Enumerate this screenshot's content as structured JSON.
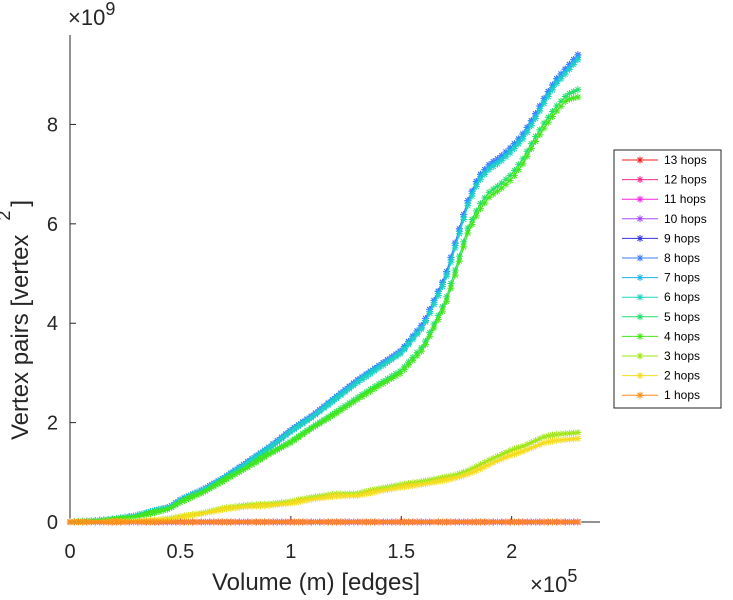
{
  "chart_data": {
    "type": "line",
    "title": "",
    "xlabel": "Volume (m) [edges]",
    "ylabel_main": "Vertex pairs [vertex",
    "ylabel_sup": "2",
    "ylabel_close": "]",
    "x_exponent_base": "×10",
    "x_exponent_power": "5",
    "y_exponent_base": "×10",
    "y_exponent_power": "9",
    "xlim": [
      0,
      2.4
    ],
    "ylim": [
      0,
      9.8
    ],
    "x_units_scale": "1e5",
    "y_units_scale": "1e9",
    "xticks": [
      0,
      0.5,
      1,
      1.5,
      2
    ],
    "xtick_labels": [
      "0",
      "0.5",
      "1",
      "1.5",
      "2"
    ],
    "yticks": [
      0,
      2,
      4,
      6,
      8
    ],
    "ytick_labels": [
      "0",
      "2",
      "4",
      "6",
      "8"
    ],
    "grid": false,
    "legend_position": "right",
    "x": [
      0.0,
      0.1,
      0.2,
      0.3,
      0.4,
      0.45,
      0.5,
      0.6,
      0.7,
      0.8,
      0.9,
      1.0,
      1.1,
      1.2,
      1.3,
      1.4,
      1.5,
      1.6,
      1.7,
      1.75,
      1.8,
      1.85,
      1.9,
      1.95,
      2.0,
      2.05,
      2.1,
      2.15,
      2.2,
      2.25,
      2.3
    ],
    "series": [
      {
        "name": "13 hops",
        "color": "#ff1a1a",
        "values": [
          0,
          0,
          0,
          0,
          0,
          0,
          0,
          0,
          0,
          0,
          0,
          0,
          0,
          0,
          0,
          0,
          0,
          0,
          0,
          0,
          0,
          0,
          0,
          0,
          0,
          0,
          0,
          0,
          0,
          0,
          0
        ]
      },
      {
        "name": "12 hops",
        "color": "#ff2a8c",
        "values": [
          0,
          0,
          0,
          0,
          0,
          0,
          0,
          0,
          0,
          0,
          0,
          0,
          0,
          0,
          0,
          0,
          0,
          0,
          0,
          0,
          0,
          0,
          0,
          0,
          0,
          0,
          0,
          0,
          0,
          0,
          0
        ]
      },
      {
        "name": "11 hops",
        "color": "#ff22e0",
        "values": [
          0,
          0,
          0,
          0,
          0,
          0,
          0,
          0,
          0,
          0,
          0,
          0,
          0,
          0,
          0,
          0,
          0,
          0,
          0,
          0,
          0,
          0,
          0,
          0,
          0,
          0,
          0,
          0,
          0,
          0,
          0
        ]
      },
      {
        "name": "10 hops",
        "color": "#a64dff",
        "values": [
          0,
          0,
          0,
          0,
          0,
          0,
          0,
          0,
          0,
          0,
          0,
          0,
          0,
          0,
          0,
          0,
          0,
          0,
          0,
          0,
          0,
          0,
          0,
          0,
          0,
          0,
          0,
          0,
          0,
          0,
          0
        ]
      },
      {
        "name": "9 hops",
        "color": "#3333e6",
        "values": [
          0.0,
          0.02,
          0.06,
          0.13,
          0.25,
          0.3,
          0.45,
          0.65,
          0.9,
          1.2,
          1.5,
          1.85,
          2.15,
          2.5,
          2.85,
          3.15,
          3.45,
          4.0,
          4.95,
          5.7,
          6.45,
          6.95,
          7.2,
          7.35,
          7.55,
          7.8,
          8.15,
          8.55,
          8.9,
          9.15,
          9.4
        ]
      },
      {
        "name": "8 hops",
        "color": "#3d7bff",
        "values": [
          0.0,
          0.02,
          0.06,
          0.13,
          0.25,
          0.3,
          0.45,
          0.65,
          0.9,
          1.2,
          1.5,
          1.85,
          2.15,
          2.5,
          2.85,
          3.15,
          3.45,
          4.0,
          4.95,
          5.7,
          6.45,
          6.95,
          7.2,
          7.35,
          7.55,
          7.8,
          8.15,
          8.55,
          8.9,
          9.15,
          9.4
        ]
      },
      {
        "name": "7 hops",
        "color": "#1ab3f0",
        "values": [
          0.0,
          0.02,
          0.06,
          0.13,
          0.25,
          0.3,
          0.44,
          0.64,
          0.89,
          1.19,
          1.49,
          1.83,
          2.13,
          2.48,
          2.83,
          3.13,
          3.42,
          3.96,
          4.9,
          5.65,
          6.4,
          6.9,
          7.15,
          7.3,
          7.5,
          7.75,
          8.1,
          8.5,
          8.85,
          9.1,
          9.35
        ]
      },
      {
        "name": "6 hops",
        "color": "#1fd3c0",
        "values": [
          0.0,
          0.02,
          0.06,
          0.13,
          0.25,
          0.3,
          0.44,
          0.64,
          0.88,
          1.18,
          1.48,
          1.82,
          2.12,
          2.46,
          2.8,
          3.1,
          3.4,
          3.93,
          4.86,
          5.6,
          6.35,
          6.85,
          7.1,
          7.25,
          7.45,
          7.7,
          8.05,
          8.45,
          8.8,
          9.05,
          9.3
        ]
      },
      {
        "name": "5 hops",
        "color": "#22e06a",
        "values": [
          0.0,
          0.02,
          0.05,
          0.11,
          0.21,
          0.27,
          0.4,
          0.6,
          0.85,
          1.1,
          1.38,
          1.62,
          1.92,
          2.2,
          2.5,
          2.78,
          3.05,
          3.55,
          4.45,
          5.15,
          5.9,
          6.35,
          6.65,
          6.8,
          7.0,
          7.3,
          7.7,
          8.05,
          8.35,
          8.6,
          8.7
        ]
      },
      {
        "name": "4 hops",
        "color": "#44e61a",
        "values": [
          0.0,
          0.02,
          0.05,
          0.11,
          0.21,
          0.27,
          0.4,
          0.59,
          0.84,
          1.09,
          1.36,
          1.6,
          1.9,
          2.17,
          2.46,
          2.74,
          3.0,
          3.48,
          4.36,
          5.05,
          5.8,
          6.25,
          6.55,
          6.7,
          6.9,
          7.2,
          7.6,
          7.95,
          8.25,
          8.5,
          8.55
        ]
      },
      {
        "name": "3 hops",
        "color": "#a0e619",
        "values": [
          0.0,
          0.0,
          0.01,
          0.02,
          0.04,
          0.07,
          0.11,
          0.18,
          0.28,
          0.34,
          0.36,
          0.41,
          0.5,
          0.56,
          0.57,
          0.67,
          0.75,
          0.82,
          0.9,
          0.95,
          1.03,
          1.13,
          1.25,
          1.35,
          1.45,
          1.52,
          1.62,
          1.72,
          1.76,
          1.78,
          1.8
        ]
      },
      {
        "name": "2 hops",
        "color": "#f5dc1e",
        "values": [
          0.0,
          0.0,
          0.01,
          0.02,
          0.04,
          0.06,
          0.1,
          0.17,
          0.26,
          0.31,
          0.33,
          0.38,
          0.46,
          0.52,
          0.53,
          0.62,
          0.7,
          0.76,
          0.84,
          0.89,
          0.96,
          1.05,
          1.16,
          1.26,
          1.35,
          1.42,
          1.51,
          1.6,
          1.64,
          1.66,
          1.68
        ]
      },
      {
        "name": "1 hops",
        "color": "#ff8a1a",
        "values": [
          0,
          0,
          0,
          0,
          0,
          0,
          0,
          0,
          0,
          0,
          0,
          0,
          0,
          0,
          0,
          0,
          0,
          0,
          0,
          0,
          0,
          0,
          0,
          0,
          0,
          0,
          0,
          0,
          0,
          0,
          0
        ]
      }
    ]
  }
}
